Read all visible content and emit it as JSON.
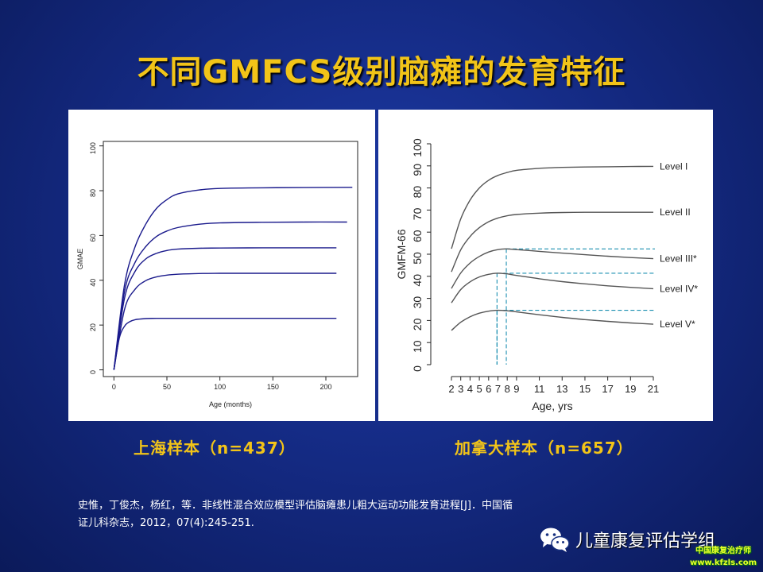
{
  "slide": {
    "title": "不同GMFCS级别脑瘫的发育特征",
    "caption_left": "上海样本（n=437）",
    "caption_right": "加拿大样本（n=657）",
    "citation_line1": "史惟，丁俊杰，杨红，等．非线性混合效应模型评估脑瘫患儿粗大运动功能发育进程[J]．中国循",
    "citation_line2": "证儿科杂志，2012，07(4):245-251.",
    "watermark_text": "儿童康复评估学组",
    "site_badge_line1": "中国康复治疗师",
    "site_badge_line2": "www.kfzls.com"
  },
  "chart_data": [
    {
      "type": "line",
      "xlabel": "Age (months)",
      "ylabel": "GMAE",
      "xlim": [
        0,
        225
      ],
      "ylim": [
        0,
        100
      ],
      "x_ticks": [
        0,
        50,
        100,
        150,
        200
      ],
      "y_ticks": [
        0,
        20,
        40,
        60,
        80,
        100
      ],
      "line_color": "#1a1a8c",
      "series": [
        {
          "x": [
            0,
            10,
            20,
            30,
            40,
            50,
            60,
            80,
            100,
            140,
            180,
            225
          ],
          "values": [
            0,
            38,
            55,
            65,
            72,
            76,
            78.5,
            80.3,
            81,
            81.3,
            81.4,
            81.5
          ]
        },
        {
          "x": [
            0,
            10,
            20,
            30,
            40,
            50,
            60,
            80,
            100,
            140,
            180,
            220
          ],
          "values": [
            0,
            35,
            48,
            55,
            59.5,
            62,
            63.5,
            65,
            65.6,
            65.9,
            66,
            66
          ]
        },
        {
          "x": [
            0,
            10,
            20,
            30,
            40,
            50,
            60,
            80,
            100,
            140,
            180,
            210
          ],
          "values": [
            0,
            32,
            44,
            49.5,
            52,
            53.3,
            53.9,
            54.3,
            54.4,
            54.5,
            54.5,
            54.5
          ]
        },
        {
          "x": [
            0,
            10,
            20,
            30,
            40,
            50,
            60,
            80,
            100,
            140,
            180,
            210
          ],
          "values": [
            0,
            27,
            36,
            39.8,
            41.5,
            42.3,
            42.7,
            43,
            43.1,
            43.1,
            43.1,
            43.1
          ]
        },
        {
          "x": [
            0,
            5,
            10,
            15,
            20,
            30,
            40,
            60,
            100,
            140,
            180,
            210
          ],
          "values": [
            0,
            14,
            19.5,
            21.5,
            22.4,
            22.9,
            23,
            23,
            23,
            23,
            23,
            23
          ]
        }
      ]
    },
    {
      "type": "line",
      "xlabel": "Age, yrs",
      "ylabel": "GMFM-66",
      "xlim": [
        2,
        21
      ],
      "ylim": [
        0,
        100
      ],
      "x_ticks": [
        2,
        3,
        4,
        5,
        6,
        7,
        8,
        9,
        11,
        13,
        15,
        17,
        19,
        21
      ],
      "y_ticks": [
        0,
        10,
        20,
        30,
        40,
        50,
        60,
        70,
        80,
        90,
        100
      ],
      "line_color": "#555555",
      "series": [
        {
          "name": "Level I",
          "x": [
            2,
            3,
            4,
            5,
            6,
            7,
            8,
            9,
            11,
            13,
            15,
            17,
            19,
            21
          ],
          "values": [
            52.5,
            66,
            74.5,
            80,
            83.5,
            85.7,
            87,
            88,
            88.9,
            89.3,
            89.5,
            89.6,
            89.7,
            89.8
          ]
        },
        {
          "name": "Level II",
          "x": [
            2,
            3,
            4,
            5,
            6,
            7,
            8,
            9,
            11,
            13,
            15,
            17,
            19,
            21
          ],
          "values": [
            42,
            52,
            58,
            62,
            64.7,
            66.4,
            67.4,
            68,
            68.6,
            68.9,
            69,
            69,
            69,
            69
          ]
        },
        {
          "name": "Level III*",
          "x": [
            2,
            3,
            4,
            5,
            6,
            7,
            7.9,
            9,
            11,
            13,
            15,
            17,
            19,
            21
          ],
          "values": [
            34.5,
            41.5,
            46,
            49,
            51,
            52.1,
            52.4,
            52.1,
            51.3,
            50.5,
            49.8,
            49.1,
            48.5,
            48
          ]
        },
        {
          "name": "Level IV*",
          "x": [
            2,
            3,
            4,
            5,
            6,
            6.9,
            8,
            9,
            11,
            13,
            15,
            17,
            19,
            21
          ],
          "values": [
            28,
            34,
            37.5,
            39.7,
            40.9,
            41.4,
            41.1,
            40.4,
            38.9,
            37.6,
            36.6,
            35.7,
            35,
            34.4
          ]
        },
        {
          "name": "Level V*",
          "x": [
            2,
            3,
            4,
            5,
            6,
            6.9,
            8,
            9,
            11,
            13,
            15,
            17,
            19,
            21
          ],
          "values": [
            15.5,
            19.2,
            21.7,
            23.3,
            24.2,
            24.6,
            24.4,
            23.9,
            22.6,
            21.4,
            20.4,
            19.6,
            18.9,
            18.3
          ]
        }
      ],
      "peaks": [
        {
          "x": 7.9,
          "y": 52.4
        },
        {
          "x": 6.9,
          "y": 41.4
        },
        {
          "x": 6.9,
          "y": 24.6
        }
      ],
      "peak_line_color": "#1b8fb0"
    }
  ]
}
